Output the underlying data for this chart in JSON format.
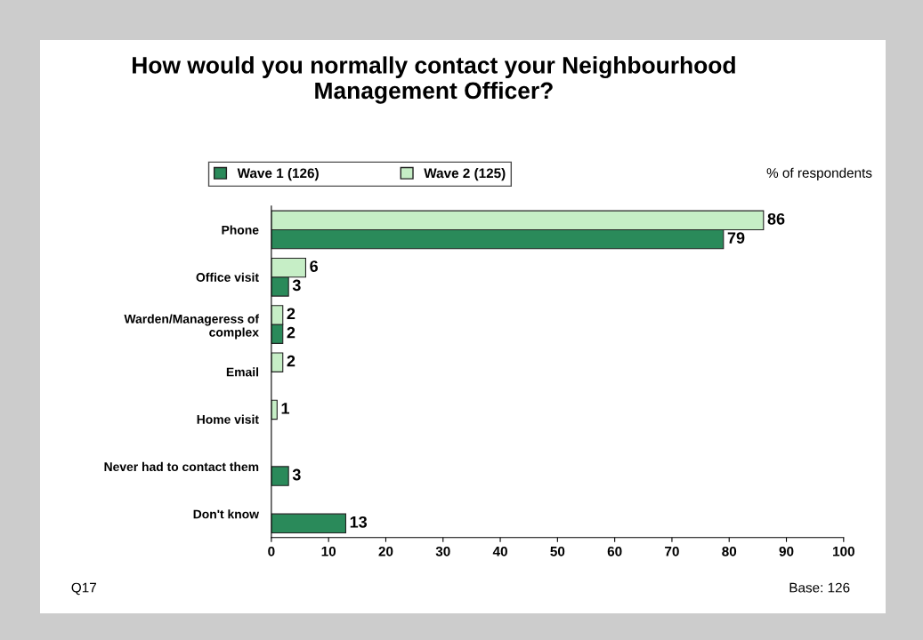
{
  "chart_data": {
    "type": "bar",
    "orientation": "horizontal",
    "title": "How would you normally contact your Neighbourhood\nManagement Officer?",
    "categories": [
      "Phone",
      "Office visit",
      "Warden/Manageress of\ncomplex",
      "Email",
      "Home visit",
      "Never had to contact them",
      "Don't know"
    ],
    "series": [
      {
        "name": "Wave 1 (126)",
        "color": "#2a8a5a",
        "values": [
          79,
          3,
          2,
          null,
          null,
          3,
          13
        ]
      },
      {
        "name": "Wave 2 (125)",
        "color": "#c6eec6",
        "values": [
          86,
          6,
          2,
          2,
          1,
          null,
          null
        ]
      }
    ],
    "xlim": [
      0,
      100
    ],
    "xticks": [
      0,
      10,
      20,
      30,
      40,
      50,
      60,
      70,
      80,
      90,
      100
    ],
    "data_labels": true,
    "legend": "top",
    "grid": false,
    "annotations": [
      "% of respondents",
      "Q17",
      "Base: 126"
    ]
  }
}
